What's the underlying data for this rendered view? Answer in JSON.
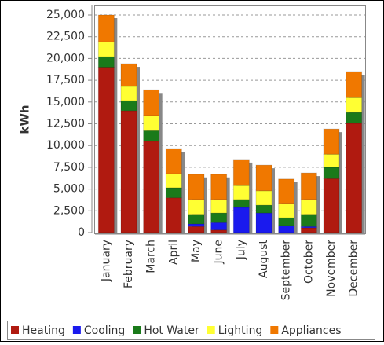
{
  "chart_data": {
    "type": "stacked-bar",
    "ylabel": "kWh",
    "categories": [
      "January",
      "February",
      "March",
      "April",
      "May",
      "June",
      "July",
      "August",
      "September",
      "October",
      "November",
      "December"
    ],
    "series": [
      {
        "name": "Heating",
        "color": "#b01a10",
        "values": [
          19000,
          14000,
          10500,
          4000,
          700,
          300,
          0,
          0,
          0,
          550,
          6200,
          12550
        ]
      },
      {
        "name": "Cooling",
        "color": "#1a1aee",
        "values": [
          0,
          0,
          0,
          0,
          300,
          850,
          2900,
          2250,
          800,
          150,
          0,
          0
        ]
      },
      {
        "name": "Hot Water",
        "color": "#1a7a1a",
        "values": [
          1200,
          1150,
          1200,
          1150,
          1100,
          1100,
          900,
          900,
          900,
          1400,
          1300,
          1250
        ]
      },
      {
        "name": "Lighting",
        "color": "#ffff33",
        "values": [
          1700,
          1650,
          1750,
          1600,
          1700,
          1550,
          1600,
          1650,
          1650,
          1700,
          1500,
          1700
        ]
      },
      {
        "name": "Appliances",
        "color": "#f07800",
        "values": [
          3100,
          2600,
          2950,
          2900,
          2900,
          2900,
          3000,
          2950,
          2800,
          3050,
          2900,
          3000
        ]
      }
    ],
    "ylim": [
      0,
      25000
    ],
    "yticks": [
      0,
      {
        "value": 2500,
        "label": "2,500"
      },
      {
        "value": 5000,
        "label": "5,000"
      },
      {
        "value": 7500,
        "label": "7,500"
      },
      {
        "value": 10000,
        "label": "10,000"
      },
      {
        "value": 12500,
        "label": "12,500"
      },
      {
        "value": 15000,
        "label": "15,000"
      },
      {
        "value": 17500,
        "label": "17,500"
      },
      {
        "value": 20000,
        "label": "20,000"
      },
      {
        "value": 22500,
        "label": "22,500"
      },
      {
        "value": 25000,
        "label": "25,000"
      }
    ],
    "grid": true,
    "legend": "bottom"
  }
}
